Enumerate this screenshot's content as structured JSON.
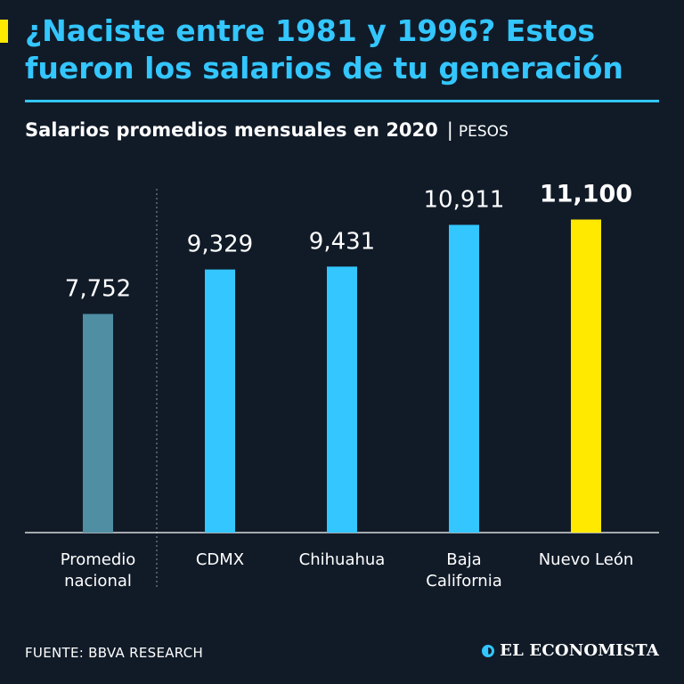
{
  "header": {
    "title": "¿Naciste entre 1981 y 1996? Estos fueron los salarios de tu generación",
    "subtitle": "Salarios promedios mensuales en 2020",
    "separator": "|",
    "unit": "PESOS"
  },
  "footer": {
    "source": "FUENTE: BBVA RESEARCH",
    "brand": "EL ECONOMISTA",
    "brand_icon": "el-economista-logo-icon"
  },
  "colors": {
    "background": "#111b28",
    "accent_blue": "#33c6ff",
    "accent_yellow": "#ffe900",
    "national_bar": "#4f8ea3",
    "text": "#ffffff"
  },
  "chart_data": {
    "type": "bar",
    "title": "Salarios promedios mensuales en 2020",
    "ylabel": "",
    "xlabel": "",
    "ylim": [
      0,
      12000
    ],
    "grid": false,
    "categories": [
      [
        "Promedio",
        "nacional"
      ],
      [
        "CDMX"
      ],
      [
        "Chihuahua"
      ],
      [
        "Baja",
        "California"
      ],
      [
        "Nuevo León"
      ]
    ],
    "values": [
      7752,
      9329,
      9431,
      10911,
      11100
    ],
    "value_labels": [
      "7,752",
      "9,329",
      "9,431",
      "10,911",
      "11,100"
    ],
    "bar_colors": [
      "#4f8ea3",
      "#33c6ff",
      "#33c6ff",
      "#33c6ff",
      "#ffe900"
    ],
    "highlight_index": 4
  }
}
